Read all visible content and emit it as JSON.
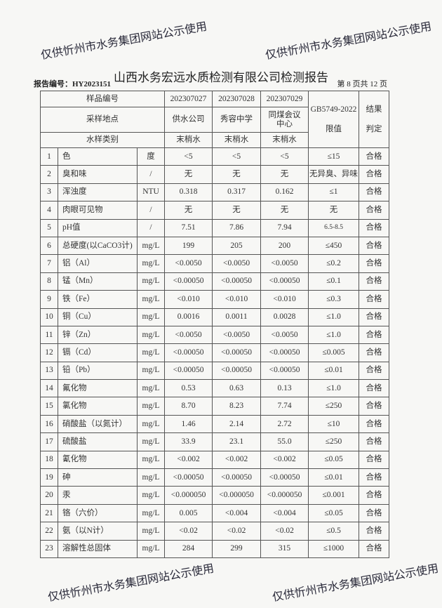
{
  "title": "山西水务宏远水质检测有限公司检测报告",
  "report_no": "报告编号：HY2023151",
  "page": "第 8 页共 12 页",
  "watermark": "仅供忻州市水务集团网站公示使用",
  "header": {
    "sample_no_label": "样品编号",
    "samples": [
      "202307027",
      "202307028",
      "202307029"
    ],
    "site_label": "采样地点",
    "sites": [
      "供水公司",
      "秀容中学",
      "同煤会议中心"
    ],
    "type_label": "水样类别",
    "types": [
      "末梢水",
      "末梢水",
      "末梢水"
    ],
    "limit_label": "GB5749-2022 限值",
    "result_label": "结果判定"
  },
  "rows": [
    {
      "no": "1",
      "name": "色",
      "unit": "度",
      "v": [
        "<5",
        "<5",
        "<5"
      ],
      "limit": "≤15",
      "result": "合格"
    },
    {
      "no": "2",
      "name": "臭和味",
      "unit": "/",
      "v": [
        "无",
        "无",
        "无"
      ],
      "limit": "无异臭、异味",
      "result": "合格"
    },
    {
      "no": "3",
      "name": "浑浊度",
      "unit": "NTU",
      "v": [
        "0.318",
        "0.317",
        "0.162"
      ],
      "limit": "≤1",
      "result": "合格"
    },
    {
      "no": "4",
      "name": "肉眼可见物",
      "unit": "/",
      "v": [
        "无",
        "无",
        "无"
      ],
      "limit": "无",
      "result": "合格"
    },
    {
      "no": "5",
      "name": "pH值",
      "unit": "/",
      "v": [
        "7.51",
        "7.86",
        "7.94"
      ],
      "limit": "6.5-8.5",
      "result": "合格"
    },
    {
      "no": "6",
      "name": "总硬度(以CaCO3计)",
      "unit": "mg/L",
      "v": [
        "199",
        "205",
        "200"
      ],
      "limit": "≤450",
      "result": "合格"
    },
    {
      "no": "7",
      "name": "铝（Al）",
      "unit": "mg/L",
      "v": [
        "<0.0050",
        "<0.0050",
        "<0.0050"
      ],
      "limit": "≤0.2",
      "result": "合格"
    },
    {
      "no": "8",
      "name": "锰（Mn）",
      "unit": "mg/L",
      "v": [
        "<0.00050",
        "<0.00050",
        "<0.00050"
      ],
      "limit": "≤0.1",
      "result": "合格"
    },
    {
      "no": "9",
      "name": "铁（Fe）",
      "unit": "mg/L",
      "v": [
        "<0.010",
        "<0.010",
        "<0.010"
      ],
      "limit": "≤0.3",
      "result": "合格"
    },
    {
      "no": "10",
      "name": "铜（Cu）",
      "unit": "mg/L",
      "v": [
        "0.0016",
        "0.0011",
        "0.0028"
      ],
      "limit": "≤1.0",
      "result": "合格"
    },
    {
      "no": "11",
      "name": "锌（Zn）",
      "unit": "mg/L",
      "v": [
        "<0.0050",
        "<0.0050",
        "<0.0050"
      ],
      "limit": "≤1.0",
      "result": "合格"
    },
    {
      "no": "12",
      "name": "镉（Cd）",
      "unit": "mg/L",
      "v": [
        "<0.00050",
        "<0.00050",
        "<0.00050"
      ],
      "limit": "≤0.005",
      "result": "合格"
    },
    {
      "no": "13",
      "name": "铅（Pb）",
      "unit": "mg/L",
      "v": [
        "<0.00050",
        "<0.00050",
        "<0.00050"
      ],
      "limit": "≤0.01",
      "result": "合格"
    },
    {
      "no": "14",
      "name": "氟化物",
      "unit": "mg/L",
      "v": [
        "0.53",
        "0.63",
        "0.13"
      ],
      "limit": "≤1.0",
      "result": "合格"
    },
    {
      "no": "15",
      "name": "氯化物",
      "unit": "mg/L",
      "v": [
        "8.70",
        "8.23",
        "7.74"
      ],
      "limit": "≤250",
      "result": "合格"
    },
    {
      "no": "16",
      "name": "硝酸盐（以氮计）",
      "unit": "mg/L",
      "v": [
        "1.46",
        "2.14",
        "2.72"
      ],
      "limit": "≤10",
      "result": "合格"
    },
    {
      "no": "17",
      "name": "硫酸盐",
      "unit": "mg/L",
      "v": [
        "33.9",
        "23.1",
        "55.0"
      ],
      "limit": "≤250",
      "result": "合格"
    },
    {
      "no": "18",
      "name": "氰化物",
      "unit": "mg/L",
      "v": [
        "<0.002",
        "<0.002",
        "<0.002"
      ],
      "limit": "≤0.05",
      "result": "合格"
    },
    {
      "no": "19",
      "name": "砷",
      "unit": "mg/L",
      "v": [
        "<0.00050",
        "<0.00050",
        "<0.00050"
      ],
      "limit": "≤0.01",
      "result": "合格"
    },
    {
      "no": "20",
      "name": "汞",
      "unit": "mg/L",
      "v": [
        "<0.000050",
        "<0.000050",
        "<0.000050"
      ],
      "limit": "≤0.001",
      "result": "合格"
    },
    {
      "no": "21",
      "name": "铬（六价）",
      "unit": "mg/L",
      "v": [
        "0.005",
        "<0.004",
        "<0.004"
      ],
      "limit": "≤0.05",
      "result": "合格"
    },
    {
      "no": "22",
      "name": "氨（以N计）",
      "unit": "mg/L",
      "v": [
        "<0.02",
        "<0.02",
        "<0.02"
      ],
      "limit": "≤0.5",
      "result": "合格"
    },
    {
      "no": "23",
      "name": "溶解性总固体",
      "unit": "mg/L",
      "v": [
        "284",
        "299",
        "315"
      ],
      "limit": "≤1000",
      "result": "合格"
    }
  ]
}
